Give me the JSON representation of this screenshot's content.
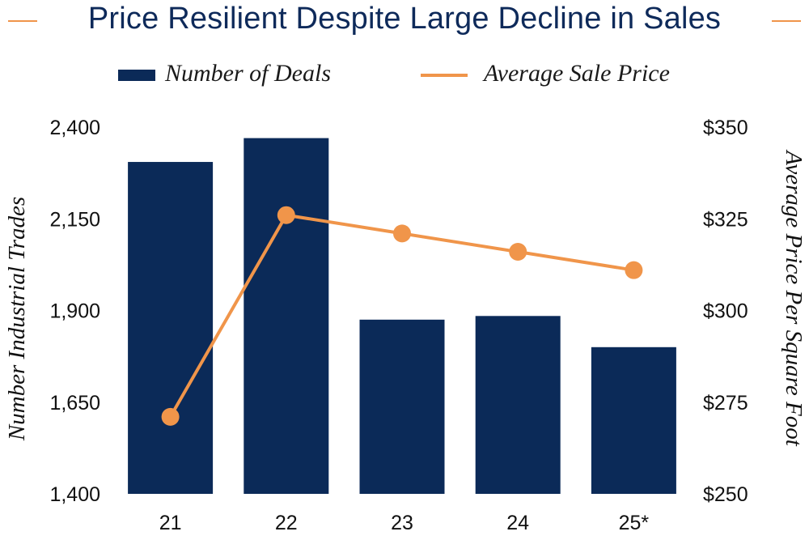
{
  "chart_data": {
    "type": "bar",
    "title": "Price Resilient Despite Large Decline in Sales",
    "categories": [
      "21",
      "22",
      "23",
      "24",
      "25*"
    ],
    "series": [
      {
        "name": "Number of Deals",
        "kind": "bar",
        "axis": "left",
        "color": "#0b2a58",
        "values": [
          2305,
          2370,
          1875,
          1885,
          1800
        ]
      },
      {
        "name": "Average Sale Price",
        "kind": "line",
        "axis": "right",
        "color": "#f0954a",
        "values": [
          271,
          326,
          321,
          316,
          311
        ]
      }
    ],
    "y_left": {
      "label": "Number Industrial Trades",
      "range": [
        1400,
        2400
      ],
      "ticks": [
        "2,400",
        "2,150",
        "1,900",
        "1,650",
        "1,400"
      ],
      "tick_values": [
        2400,
        2150,
        1900,
        1650,
        1400
      ]
    },
    "y_right": {
      "label": "Average Price Per Square Foot",
      "range": [
        250,
        350
      ],
      "ticks": [
        "$350",
        "$325",
        "$300",
        "$275",
        "$250"
      ],
      "tick_values": [
        350,
        325,
        300,
        275,
        250
      ]
    },
    "grid": false,
    "legend_position": "top"
  },
  "colors": {
    "title": "#0e2a5a",
    "accent": "#f0954a",
    "bar": "#0b2a58"
  }
}
